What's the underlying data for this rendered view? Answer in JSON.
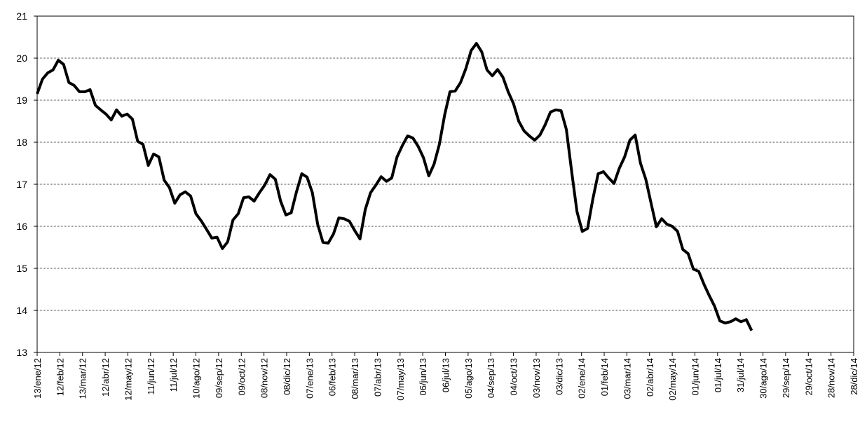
{
  "chart_data": {
    "type": "line",
    "x": [
      "2012-01-13",
      "2012-01-20",
      "2012-01-27",
      "2012-02-03",
      "2012-02-10",
      "2012-02-17",
      "2012-02-24",
      "2012-03-02",
      "2012-03-09",
      "2012-03-16",
      "2012-03-23",
      "2012-03-30",
      "2012-04-06",
      "2012-04-13",
      "2012-04-20",
      "2012-04-27",
      "2012-05-04",
      "2012-05-11",
      "2012-05-18",
      "2012-05-25",
      "2012-06-01",
      "2012-06-08",
      "2012-06-15",
      "2012-06-22",
      "2012-06-29",
      "2012-07-06",
      "2012-07-13",
      "2012-07-20",
      "2012-07-27",
      "2012-08-03",
      "2012-08-10",
      "2012-08-17",
      "2012-08-24",
      "2012-08-31",
      "2012-09-07",
      "2012-09-14",
      "2012-09-21",
      "2012-09-28",
      "2012-10-05",
      "2012-10-12",
      "2012-10-19",
      "2012-10-26",
      "2012-11-02",
      "2012-11-09",
      "2012-11-16",
      "2012-11-23",
      "2012-11-30",
      "2012-12-07",
      "2012-12-14",
      "2012-12-21",
      "2012-12-28",
      "2013-01-04",
      "2013-01-11",
      "2013-01-18",
      "2013-01-25",
      "2013-02-01",
      "2013-02-08",
      "2013-02-15",
      "2013-02-22",
      "2013-03-01",
      "2013-03-08",
      "2013-03-15",
      "2013-03-22",
      "2013-03-29",
      "2013-04-05",
      "2013-04-12",
      "2013-04-19",
      "2013-04-26",
      "2013-05-03",
      "2013-05-10",
      "2013-05-17",
      "2013-05-24",
      "2013-05-31",
      "2013-06-07",
      "2013-06-14",
      "2013-06-21",
      "2013-06-28",
      "2013-07-05",
      "2013-07-12",
      "2013-07-19",
      "2013-07-26",
      "2013-08-02",
      "2013-08-09",
      "2013-08-16",
      "2013-08-23",
      "2013-08-30",
      "2013-09-06",
      "2013-09-13",
      "2013-09-20",
      "2013-09-27",
      "2013-10-04",
      "2013-10-11",
      "2013-10-18",
      "2013-10-25",
      "2013-11-01",
      "2013-11-08",
      "2013-11-15",
      "2013-11-22",
      "2013-11-29",
      "2013-12-06",
      "2013-12-13",
      "2013-12-20",
      "2013-12-27",
      "2014-01-03",
      "2014-01-10",
      "2014-01-17",
      "2014-01-24",
      "2014-01-31",
      "2014-02-07",
      "2014-02-14",
      "2014-02-21",
      "2014-02-28",
      "2014-03-07",
      "2014-03-14",
      "2014-03-21",
      "2014-03-28",
      "2014-04-04",
      "2014-04-11",
      "2014-04-18",
      "2014-04-25",
      "2014-05-02",
      "2014-05-09",
      "2014-05-16",
      "2014-05-23",
      "2014-05-30",
      "2014-06-06",
      "2014-06-13",
      "2014-06-20",
      "2014-06-27",
      "2014-07-04",
      "2014-07-11",
      "2014-07-18",
      "2014-07-25",
      "2014-08-01",
      "2014-08-08",
      "2014-08-15"
    ],
    "series": [
      {
        "color": "#000000",
        "values": [
          19.15,
          19.5,
          19.65,
          19.72,
          19.95,
          19.85,
          19.42,
          19.35,
          19.2,
          19.2,
          19.25,
          18.88,
          18.77,
          18.67,
          18.53,
          18.77,
          18.62,
          18.67,
          18.55,
          18.02,
          17.95,
          17.45,
          17.72,
          17.65,
          17.1,
          16.92,
          16.55,
          16.75,
          16.82,
          16.72,
          16.3,
          16.13,
          15.93,
          15.72,
          15.74,
          15.47,
          15.63,
          16.15,
          16.3,
          16.68,
          16.7,
          16.6,
          16.8,
          16.98,
          17.23,
          17.12,
          16.6,
          16.27,
          16.32,
          16.82,
          17.25,
          17.17,
          16.8,
          16.05,
          15.62,
          15.6,
          15.82,
          16.2,
          16.18,
          16.12,
          15.9,
          15.7,
          16.4,
          16.8,
          16.98,
          17.18,
          17.07,
          17.15,
          17.65,
          17.92,
          18.15,
          18.1,
          17.9,
          17.63,
          17.2,
          17.48,
          17.95,
          18.65,
          19.2,
          19.22,
          19.42,
          19.75,
          20.18,
          20.35,
          20.15,
          19.72,
          19.58,
          19.73,
          19.55,
          19.2,
          18.92,
          18.5,
          18.27,
          18.15,
          18.05,
          18.17,
          18.42,
          18.72,
          18.77,
          18.75,
          18.3,
          17.3,
          16.35,
          15.88,
          15.95,
          16.65,
          17.25,
          17.3,
          17.15,
          17.02,
          17.38,
          17.65,
          18.05,
          18.17,
          17.5,
          17.12,
          16.55,
          15.99,
          16.18,
          16.05,
          16.0,
          15.88,
          15.45,
          15.35,
          14.98,
          14.93,
          14.62,
          14.35,
          14.1,
          13.75,
          13.7,
          13.73,
          13.8,
          13.73,
          13.78,
          13.52
        ]
      }
    ],
    "xlim": [
      "2012-01-13",
      "2014-12-28"
    ],
    "xticks": [
      {
        "value": "2012-01-13",
        "label": "13/ene/12"
      },
      {
        "value": "2012-02-12",
        "label": "12/feb/12"
      },
      {
        "value": "2012-03-13",
        "label": "13/mar/12"
      },
      {
        "value": "2012-04-12",
        "label": "12/abr/12"
      },
      {
        "value": "2012-05-12",
        "label": "12/may/12"
      },
      {
        "value": "2012-06-11",
        "label": "11/jun/12"
      },
      {
        "value": "2012-07-11",
        "label": "11/jul/12"
      },
      {
        "value": "2012-08-10",
        "label": "10/ago/12"
      },
      {
        "value": "2012-09-09",
        "label": "09/sep/12"
      },
      {
        "value": "2012-10-09",
        "label": "09/oct/12"
      },
      {
        "value": "2012-11-08",
        "label": "08/nov/12"
      },
      {
        "value": "2012-12-08",
        "label": "08/dic/12"
      },
      {
        "value": "2013-01-07",
        "label": "07/ene/13"
      },
      {
        "value": "2013-02-06",
        "label": "06/feb/13"
      },
      {
        "value": "2013-03-08",
        "label": "08/mar/13"
      },
      {
        "value": "2013-04-07",
        "label": "07/abr/13"
      },
      {
        "value": "2013-05-07",
        "label": "07/may/13"
      },
      {
        "value": "2013-06-06",
        "label": "06/jun/13"
      },
      {
        "value": "2013-07-06",
        "label": "06/jul/13"
      },
      {
        "value": "2013-08-05",
        "label": "05/ago/13"
      },
      {
        "value": "2013-09-04",
        "label": "04/sep/13"
      },
      {
        "value": "2013-10-04",
        "label": "04/oct/13"
      },
      {
        "value": "2013-11-03",
        "label": "03/nov/13"
      },
      {
        "value": "2013-12-03",
        "label": "03/dic/13"
      },
      {
        "value": "2014-01-02",
        "label": "02/ene/14"
      },
      {
        "value": "2014-02-01",
        "label": "01/feb/14"
      },
      {
        "value": "2014-03-03",
        "label": "03/mar/14"
      },
      {
        "value": "2014-04-02",
        "label": "02/abr/14"
      },
      {
        "value": "2014-05-02",
        "label": "02/may/14"
      },
      {
        "value": "2014-06-01",
        "label": "01/jun/14"
      },
      {
        "value": "2014-07-01",
        "label": "01/jul/14"
      },
      {
        "value": "2014-07-31",
        "label": "31/jul/14"
      },
      {
        "value": "2014-08-30",
        "label": "30/ago/14"
      },
      {
        "value": "2014-09-29",
        "label": "29/sep/14"
      },
      {
        "value": "2014-10-29",
        "label": "29/oct/14"
      },
      {
        "value": "2014-11-28",
        "label": "28/nov/14"
      },
      {
        "value": "2014-12-28",
        "label": "28/dic/14"
      }
    ],
    "ylim": [
      13,
      21
    ],
    "yticks": [
      13,
      14,
      15,
      16,
      17,
      18,
      19,
      20,
      21
    ],
    "grid": true
  }
}
